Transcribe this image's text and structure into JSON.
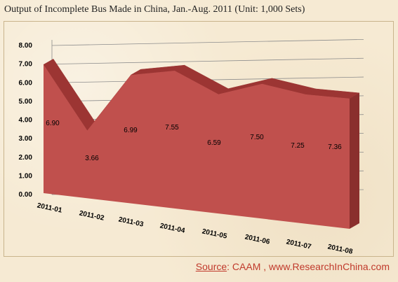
{
  "title": "Output of Incomplete Bus Made in China, Jan.-Aug. 2011   (Unit: 1,000 Sets)",
  "source": {
    "label": "Source",
    "text": ":  CAAM , www.ResearchInChina.com"
  },
  "colors": {
    "area_front": "#c0504d",
    "area_top": "#9c3533",
    "area_side": "#8a2f2d",
    "gridline": "#8c8c8c",
    "source_text": "#c0392b"
  },
  "chart_data": {
    "type": "area",
    "categories": [
      "2011-01",
      "2011-02",
      "2011-03",
      "2011-04",
      "2011-05",
      "2011-06",
      "2011-07",
      "2011-08"
    ],
    "values": [
      6.9,
      3.66,
      6.99,
      7.55,
      6.59,
      7.5,
      7.25,
      7.36
    ],
    "value_labels": [
      "6.90",
      "3.66",
      "6.99",
      "7.55",
      "6.59",
      "7.50",
      "7.25",
      "7.36"
    ],
    "yticks": [
      "0.00",
      "1.00",
      "2.00",
      "3.00",
      "4.00",
      "5.00",
      "6.00",
      "7.00",
      "8.00"
    ],
    "ylim": [
      0,
      8
    ],
    "grid": true,
    "three_d": true
  }
}
